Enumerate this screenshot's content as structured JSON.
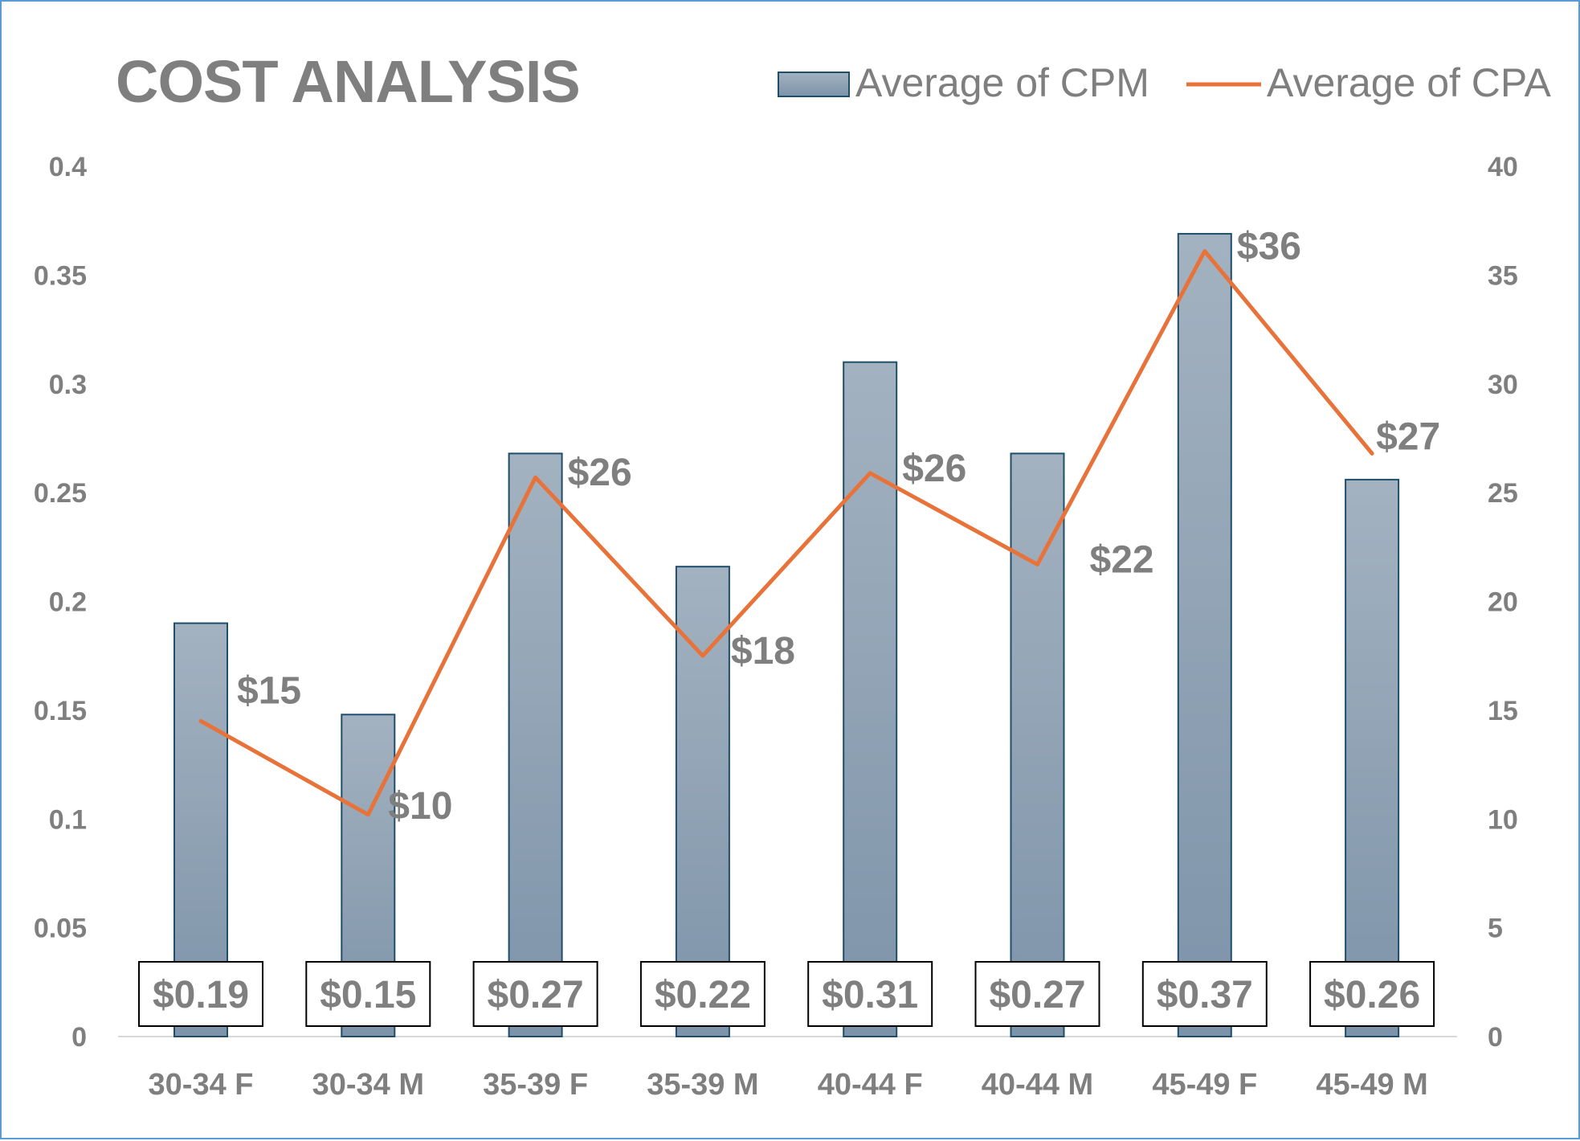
{
  "chart_data": {
    "type": "bar",
    "title": "COST ANALYSIS",
    "categories": [
      "30-34 F",
      "30-34 M",
      "35-39 F",
      "35-39 M",
      "40-44 F",
      "40-44 M",
      "45-49 F",
      "45-49 M"
    ],
    "series": [
      {
        "name": "Average of CPM",
        "type": "bar",
        "axis": "left",
        "values": [
          0.19,
          0.148,
          0.268,
          0.216,
          0.31,
          0.268,
          0.369,
          0.256
        ],
        "labels": [
          "$0.19",
          "$0.15",
          "$0.27",
          "$0.22",
          "$0.31",
          "$0.27",
          "$0.37",
          "$0.26"
        ],
        "color": "#8497ab"
      },
      {
        "name": "Average of CPA",
        "type": "line",
        "axis": "right",
        "values": [
          14.5,
          10.2,
          25.7,
          17.5,
          25.9,
          21.7,
          36.1,
          26.8
        ],
        "labels": [
          "$15",
          "$10",
          "$26",
          "$18",
          "$26",
          "$22",
          "$36",
          "$27"
        ],
        "color": "#e8733a"
      }
    ],
    "y_left": {
      "lim": [
        0,
        0.4
      ],
      "ticks": [
        "0",
        "0.05",
        "0.1",
        "0.15",
        "0.2",
        "0.25",
        "0.3",
        "0.35",
        "0.4"
      ]
    },
    "y_right": {
      "lim": [
        0,
        40
      ],
      "ticks": [
        "0",
        "5",
        "10",
        "15",
        "20",
        "25",
        "30",
        "35",
        "40"
      ]
    },
    "legend": "top-right",
    "grid": false
  }
}
